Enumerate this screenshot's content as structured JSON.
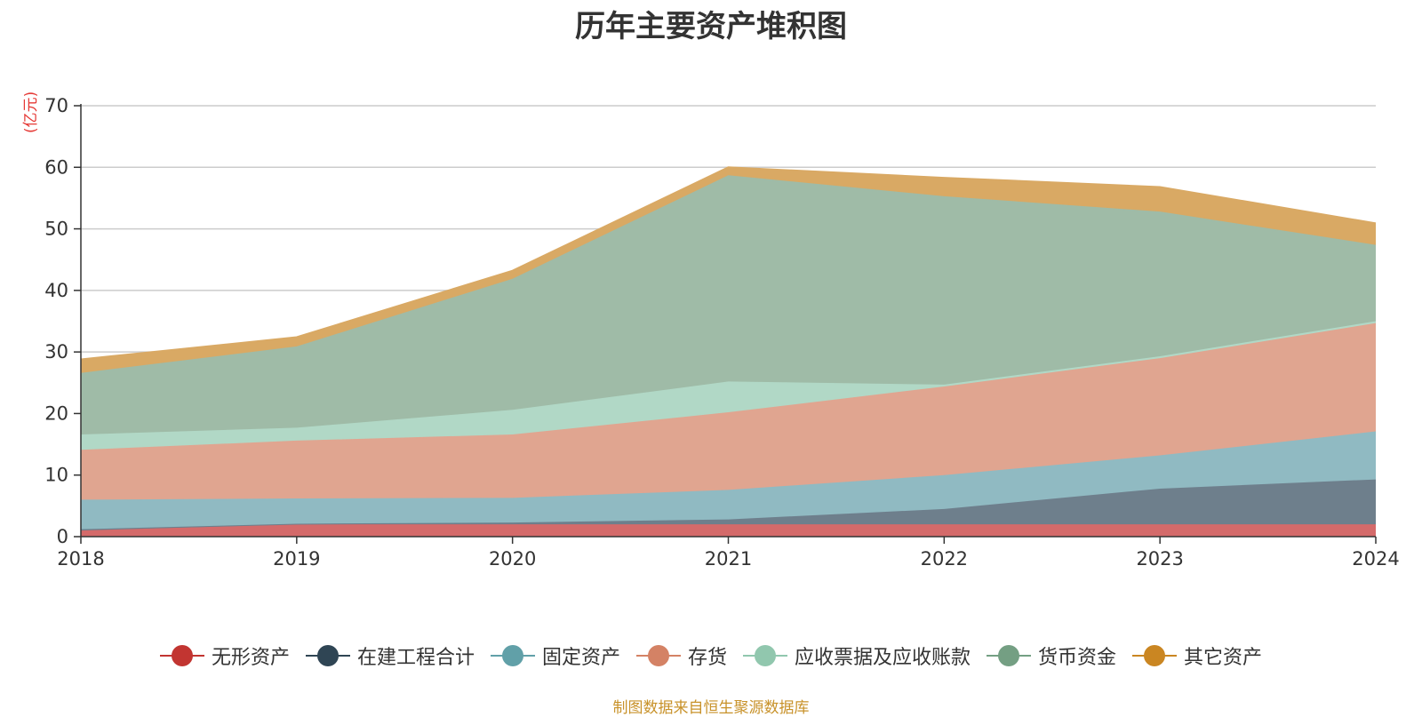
{
  "title": "历年主要资产堆积图",
  "unit": "(亿元)",
  "source": "制图数据来自恒生聚源数据库",
  "colors": {
    "unit": "#e53935",
    "source": "#c8922a",
    "axis": "#333333",
    "grid": "#cccccc"
  },
  "chart_data": {
    "type": "area",
    "stacked": true,
    "title": "历年主要资产堆积图",
    "ylabel": "(亿元)",
    "xlabel": "",
    "x": [
      "2018",
      "2019",
      "2020",
      "2021",
      "2022",
      "2023",
      "2024"
    ],
    "ylim": [
      0,
      70
    ],
    "yticks": [
      0,
      10,
      20,
      30,
      40,
      50,
      60,
      70
    ],
    "grid": true,
    "legend_position": "bottom",
    "series": [
      {
        "name": "无形资产",
        "color": "#c23531",
        "fill": "#d46a6a",
        "values": [
          1.0,
          2.0,
          2.0,
          2.0,
          2.0,
          2.0,
          2.0
        ]
      },
      {
        "name": "在建工程合计",
        "color": "#2f4554",
        "fill": "#6e7f8c",
        "values": [
          0.2,
          0.1,
          0.3,
          0.8,
          2.5,
          5.8,
          7.3
        ]
      },
      {
        "name": "固定资产",
        "color": "#61a0a8",
        "fill": "#90bac2",
        "values": [
          4.8,
          4.1,
          4.0,
          4.8,
          5.5,
          5.4,
          7.8
        ]
      },
      {
        "name": "存货",
        "color": "#d48265",
        "fill": "#e0a590",
        "values": [
          8.1,
          9.4,
          10.3,
          12.6,
          14.4,
          15.8,
          17.6
        ]
      },
      {
        "name": "应收票据及应收账款",
        "color": "#91c7ae",
        "fill": "#b1d8c6",
        "values": [
          2.5,
          2.1,
          4.0,
          5.0,
          0.3,
          0.3,
          0.3
        ]
      },
      {
        "name": "货币资金",
        "color": "#749f83",
        "fill": "#9fbba7",
        "values": [
          10.0,
          13.2,
          21.3,
          33.5,
          30.6,
          23.5,
          12.4
        ]
      },
      {
        "name": "其它资产",
        "color": "#ca8622",
        "fill": "#d9a964",
        "values": [
          2.2,
          1.5,
          1.3,
          1.3,
          3.0,
          4.0,
          3.5
        ]
      }
    ]
  }
}
